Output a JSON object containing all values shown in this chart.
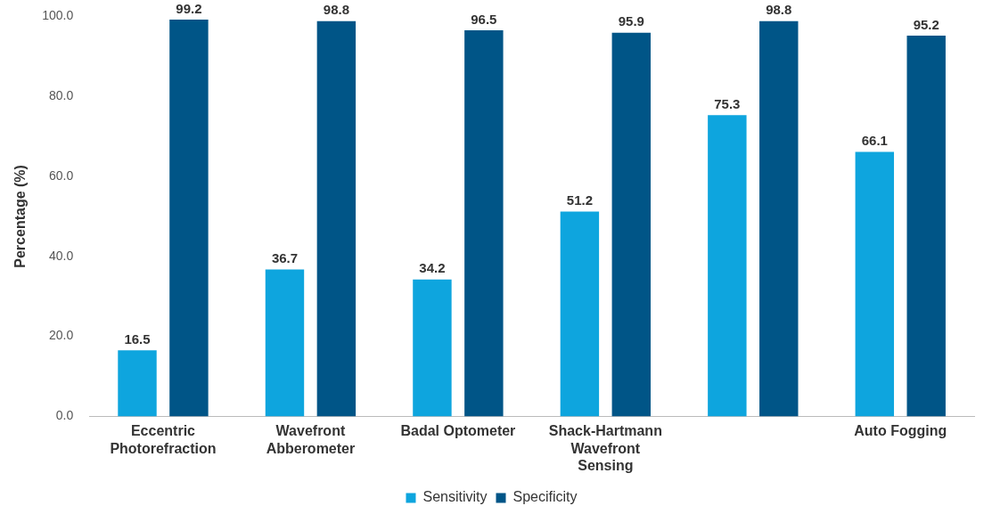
{
  "chart_data": {
    "type": "bar",
    "ylabel": "Percentage (%)",
    "categories": [
      "Eccentric Photorefraction",
      "Wavefront Abberometer",
      "Badal Optometer",
      "Shack-Hartmann Wavefront Sensing",
      null,
      "Auto Fogging"
    ],
    "series": [
      {
        "name": "Sensitivity",
        "color": "#0ea5de",
        "values": [
          16.5,
          36.7,
          34.2,
          51.2,
          75.3,
          66.1
        ]
      },
      {
        "name": "Specificity",
        "color": "#005587",
        "values": [
          99.2,
          98.8,
          96.5,
          95.9,
          98.8,
          95.2
        ]
      }
    ],
    "ylim": [
      0,
      100
    ],
    "yticks": [
      {
        "value": 0,
        "label": "0.0"
      },
      {
        "value": 20,
        "label": "20.0"
      },
      {
        "value": 40,
        "label": "40.0"
      },
      {
        "value": 60,
        "label": "60.0"
      },
      {
        "value": 80,
        "label": "80.0"
      },
      {
        "value": 100,
        "label": "100.0"
      }
    ],
    "grid": false,
    "legend": "bottom",
    "data_labels": true
  }
}
